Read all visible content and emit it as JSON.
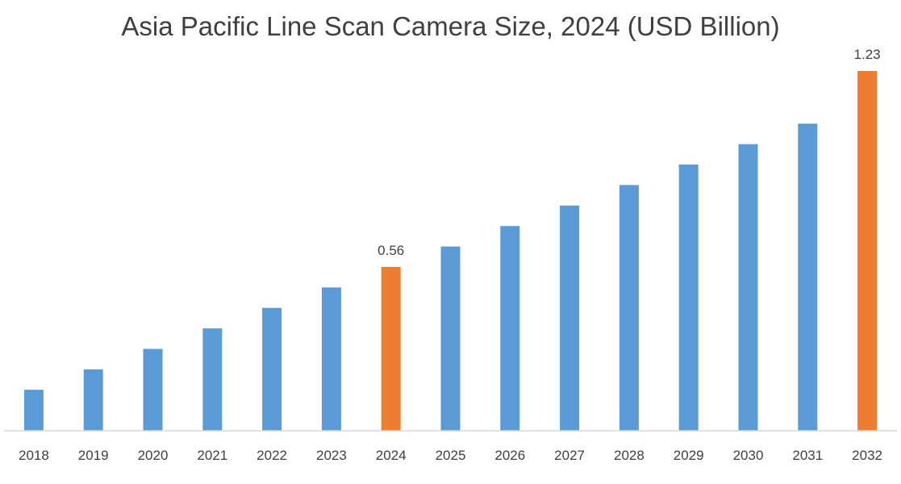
{
  "chart_data": {
    "type": "bar",
    "title": "Asia Pacific Line Scan Camera Size, 2024 (USD Billion)",
    "xlabel": "",
    "ylabel": "",
    "categories": [
      "2018",
      "2019",
      "2020",
      "2021",
      "2022",
      "2023",
      "2024",
      "2025",
      "2026",
      "2027",
      "2028",
      "2029",
      "2030",
      "2031",
      "2032"
    ],
    "values": [
      0.14,
      0.21,
      0.28,
      0.35,
      0.42,
      0.49,
      0.56,
      0.63,
      0.7,
      0.77,
      0.84,
      0.91,
      0.98,
      1.05,
      1.23
    ],
    "data_labels": [
      {
        "category": "2024",
        "text": "0.56"
      },
      {
        "category": "2032",
        "text": "1.23"
      }
    ],
    "highlight_categories": [
      "2024",
      "2032"
    ],
    "ylim": [
      0,
      1.23
    ],
    "grid": false,
    "legend": "none",
    "colors": {
      "bar": "#5b9bd5",
      "highlight": "#ed7d31",
      "axis": "#d9d9d9",
      "text": "#404040"
    }
  }
}
